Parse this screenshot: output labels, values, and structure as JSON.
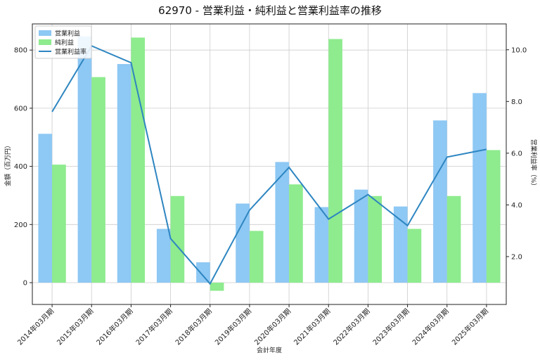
{
  "chart_data": {
    "type": "bar",
    "title": "62970 - 営業利益・純利益と営業利益率の推移",
    "xlabel": "会計年度",
    "ylabel": "金額（百万円）",
    "y2label": "営業利益率（%）",
    "categories": [
      "2014年03月期",
      "2015年03月期",
      "2016年03月期",
      "2017年03月期",
      "2018年03月期",
      "2019年03月期",
      "2020年03月期",
      "2021年03月期",
      "2022年03月期",
      "2023年03月期",
      "2024年03月期",
      "2025年03月期"
    ],
    "series": [
      {
        "name": "営業利益",
        "kind": "bar",
        "axis": "left",
        "color": "#8ec8f4",
        "values": [
          512,
          847,
          752,
          185,
          70,
          272,
          415,
          260,
          320,
          262,
          558,
          652
        ]
      },
      {
        "name": "純利益",
        "kind": "bar",
        "axis": "left",
        "color": "#8eeb8e",
        "values": [
          406,
          707,
          843,
          298,
          -28,
          178,
          338,
          838,
          298,
          185,
          298,
          456
        ]
      },
      {
        "name": "営業利益率",
        "kind": "line",
        "axis": "right",
        "color": "#2e86c1",
        "values": [
          7.6,
          10.15,
          9.5,
          2.7,
          0.95,
          3.8,
          5.45,
          3.45,
          4.4,
          3.2,
          5.85,
          6.15
        ]
      }
    ],
    "ylim": [
      -75,
      890
    ],
    "y2lim": [
      0.15,
      11.0
    ],
    "yticks": [
      0,
      200,
      400,
      600,
      800
    ],
    "y2ticks": [
      2.0,
      4.0,
      6.0,
      8.0,
      10.0
    ],
    "grid": true,
    "legend_position": "top-left"
  }
}
